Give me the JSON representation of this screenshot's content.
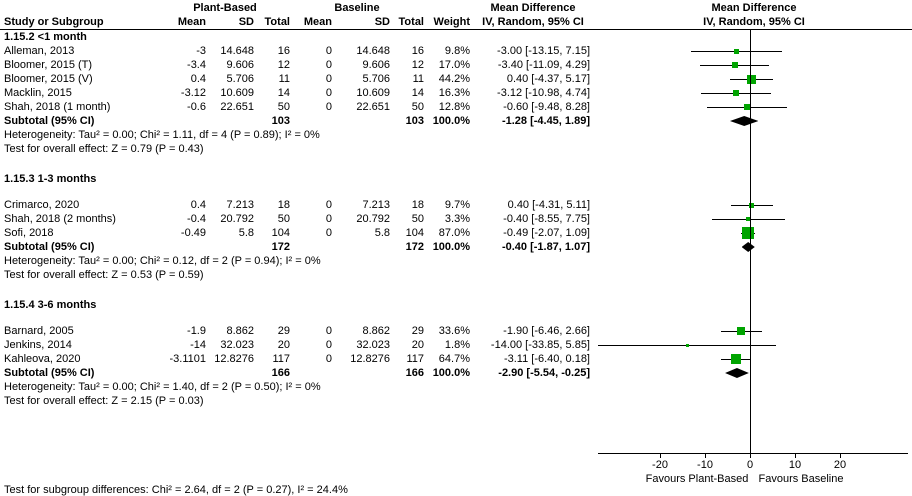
{
  "chart_data": {
    "type": "forest",
    "effect_measure": "Mean Difference",
    "method": "IV, Random, 95% CI",
    "groups": [
      "Plant-Based",
      "Baseline"
    ],
    "columns": [
      "Study or Subgroup",
      "Mean",
      "SD",
      "Total",
      "Mean",
      "SD",
      "Total",
      "Weight"
    ],
    "colors": {
      "square": "#00a400",
      "ci_line": "#000000",
      "diamond": "#000000",
      "axis": "#000000"
    },
    "axis": {
      "ticks": [
        "-20",
        "-10",
        "0",
        "10",
        "20"
      ],
      "tick_values": [
        -20,
        -10,
        0,
        10,
        20
      ],
      "xlim": [
        -34,
        35
      ],
      "left_label": "Favours Plant-Based",
      "right_label": "Favours Baseline"
    },
    "footer": "Test for subgroup differences: Chi² = 2.64, df = 2 (P = 0.27), I² = 24.4%",
    "subgroups": [
      {
        "title": "1.15.2 <1 month",
        "studies": [
          {
            "study": "Alleman, 2013",
            "mean1": "-3",
            "sd1": "14.648",
            "total1": "16",
            "mean2": "0",
            "sd2": "14.648",
            "total2": "16",
            "weight": "9.8%",
            "weight_pct": 9.8,
            "ci_text": "-3.00 [-13.15, 7.15]",
            "est": -3.0,
            "lo": -13.15,
            "hi": 7.15
          },
          {
            "study": "Bloomer, 2015 (T)",
            "mean1": "-3.4",
            "sd1": "9.606",
            "total1": "12",
            "mean2": "0",
            "sd2": "9.606",
            "total2": "12",
            "weight": "17.0%",
            "weight_pct": 17.0,
            "ci_text": "-3.40 [-11.09, 4.29]",
            "est": -3.4,
            "lo": -11.09,
            "hi": 4.29
          },
          {
            "study": "Bloomer, 2015 (V)",
            "mean1": "0.4",
            "sd1": "5.706",
            "total1": "11",
            "mean2": "0",
            "sd2": "5.706",
            "total2": "11",
            "weight": "44.2%",
            "weight_pct": 44.2,
            "ci_text": "0.40 [-4.37, 5.17]",
            "est": 0.4,
            "lo": -4.37,
            "hi": 5.17
          },
          {
            "study": "Macklin, 2015",
            "mean1": "-3.12",
            "sd1": "10.609",
            "total1": "14",
            "mean2": "0",
            "sd2": "10.609",
            "total2": "14",
            "weight": "16.3%",
            "weight_pct": 16.3,
            "ci_text": "-3.12 [-10.98, 4.74]",
            "est": -3.12,
            "lo": -10.98,
            "hi": 4.74
          },
          {
            "study": "Shah, 2018 (1 month)",
            "mean1": "-0.6",
            "sd1": "22.651",
            "total1": "50",
            "mean2": "0",
            "sd2": "22.651",
            "total2": "50",
            "weight": "12.8%",
            "weight_pct": 12.8,
            "ci_text": "-0.60 [-9.48, 8.28]",
            "est": -0.6,
            "lo": -9.48,
            "hi": 8.28
          }
        ],
        "subtotal": {
          "label": "Subtotal (95% CI)",
          "total1": "103",
          "total2": "103",
          "weight": "100.0%",
          "ci_text": "-1.28 [-4.45, 1.89]",
          "est": -1.28,
          "lo": -4.45,
          "hi": 1.89
        },
        "heterogeneity": "Heterogeneity: Tau² = 0.00; Chi² = 1.11, df = 4 (P = 0.89); I² = 0%",
        "overall_effect": "Test for overall effect: Z = 0.79 (P = 0.43)"
      },
      {
        "title": "1.15.3 1-3 months",
        "studies": [
          {
            "study": "Crimarco, 2020",
            "mean1": "0.4",
            "sd1": "7.213",
            "total1": "18",
            "mean2": "0",
            "sd2": "7.213",
            "total2": "18",
            "weight": "9.7%",
            "weight_pct": 9.7,
            "ci_text": "0.40 [-4.31, 5.11]",
            "est": 0.4,
            "lo": -4.31,
            "hi": 5.11
          },
          {
            "study": "Shah, 2018 (2 months)",
            "mean1": "-0.4",
            "sd1": "20.792",
            "total1": "50",
            "mean2": "0",
            "sd2": "20.792",
            "total2": "50",
            "weight": "3.3%",
            "weight_pct": 3.3,
            "ci_text": "-0.40 [-8.55, 7.75]",
            "est": -0.4,
            "lo": -8.55,
            "hi": 7.75
          },
          {
            "study": "Sofi, 2018",
            "mean1": "-0.49",
            "sd1": "5.8",
            "total1": "104",
            "mean2": "0",
            "sd2": "5.8",
            "total2": "104",
            "weight": "87.0%",
            "weight_pct": 87.0,
            "ci_text": "-0.49 [-2.07, 1.09]",
            "est": -0.49,
            "lo": -2.07,
            "hi": 1.09
          }
        ],
        "subtotal": {
          "label": "Subtotal (95% CI)",
          "total1": "172",
          "total2": "172",
          "weight": "100.0%",
          "ci_text": "-0.40 [-1.87, 1.07]",
          "est": -0.4,
          "lo": -1.87,
          "hi": 1.07
        },
        "heterogeneity": "Heterogeneity: Tau² = 0.00; Chi² = 0.12, df = 2 (P = 0.94); I² = 0%",
        "overall_effect": "Test for overall effect: Z = 0.53 (P = 0.59)"
      },
      {
        "title": "1.15.4 3-6 months",
        "studies": [
          {
            "study": "Barnard, 2005",
            "mean1": "-1.9",
            "sd1": "8.862",
            "total1": "29",
            "mean2": "0",
            "sd2": "8.862",
            "total2": "29",
            "weight": "33.6%",
            "weight_pct": 33.6,
            "ci_text": "-1.90 [-6.46, 2.66]",
            "est": -1.9,
            "lo": -6.46,
            "hi": 2.66
          },
          {
            "study": "Jenkins, 2014",
            "mean1": "-14",
            "sd1": "32.023",
            "total1": "20",
            "mean2": "0",
            "sd2": "32.023",
            "total2": "20",
            "weight": "1.8%",
            "weight_pct": 1.8,
            "ci_text": "-14.00 [-33.85, 5.85]",
            "est": -14.0,
            "lo": -33.85,
            "hi": 5.85
          },
          {
            "study": "Kahleova, 2020",
            "mean1": "-3.1101",
            "sd1": "12.8276",
            "total1": "117",
            "mean2": "0",
            "sd2": "12.8276",
            "total2": "117",
            "weight": "64.7%",
            "weight_pct": 64.7,
            "ci_text": "-3.11 [-6.40, 0.18]",
            "est": -3.11,
            "lo": -6.4,
            "hi": 0.18
          }
        ],
        "subtotal": {
          "label": "Subtotal (95% CI)",
          "total1": "166",
          "total2": "166",
          "weight": "100.0%",
          "ci_text": "-2.90 [-5.54, -0.25]",
          "est": -2.9,
          "lo": -5.54,
          "hi": -0.25
        },
        "heterogeneity": "Heterogeneity: Tau² = 0.00; Chi² = 1.40, df = 2 (P = 0.50); I² = 0%",
        "overall_effect": "Test for overall effect: Z = 2.15 (P = 0.03)"
      }
    ]
  }
}
